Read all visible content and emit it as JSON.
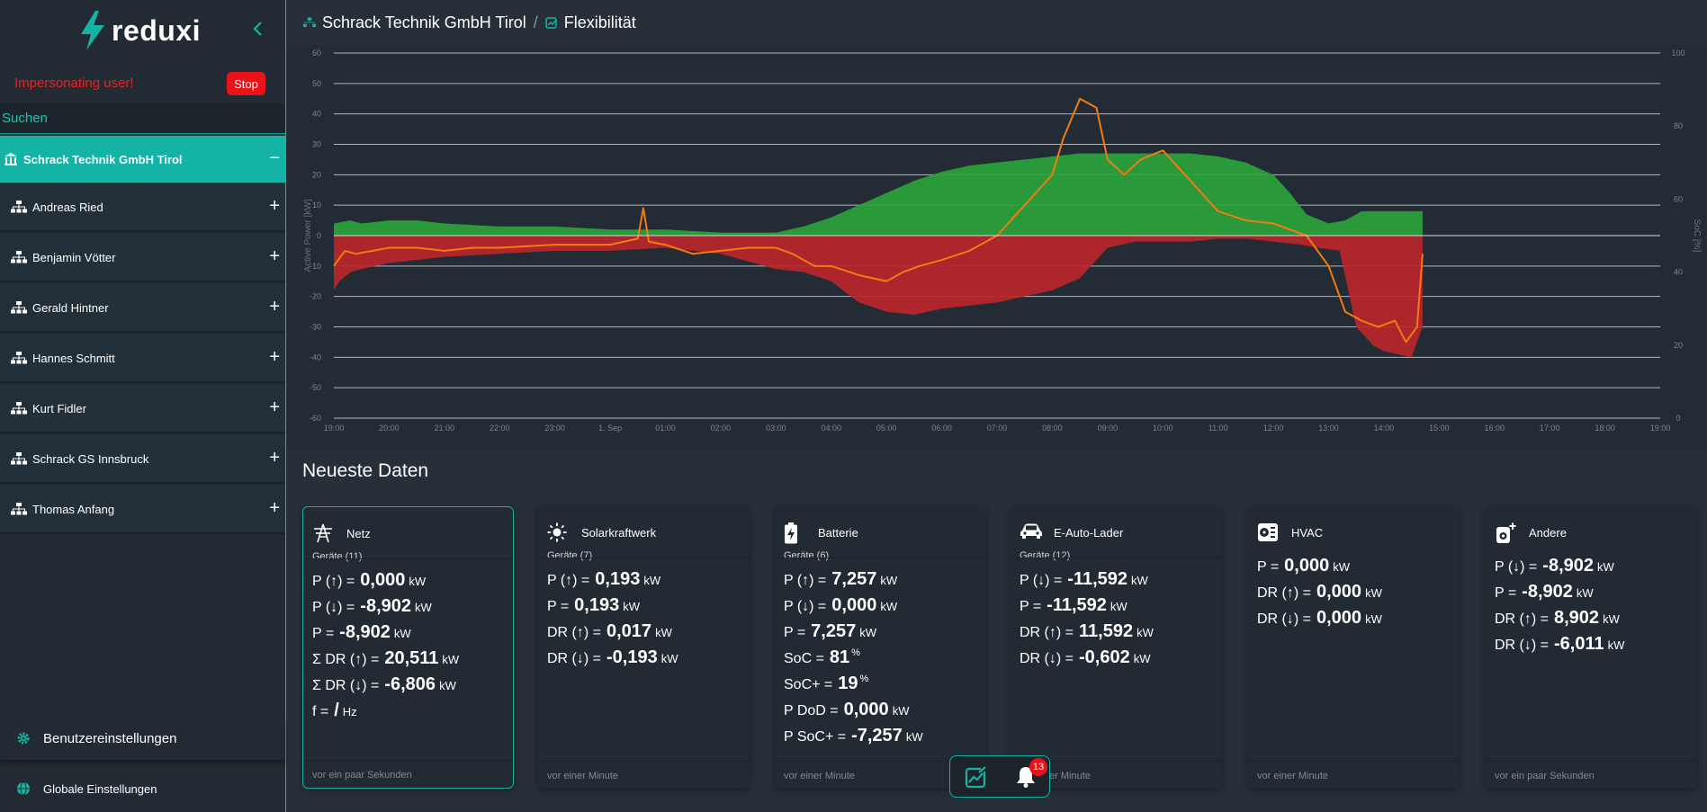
{
  "app": {
    "name": "reduxi",
    "impersonating_text": "Impersonating user!",
    "stop_label": "Stop",
    "search_placeholder": "Suchen"
  },
  "sidebar": {
    "active_org": "Schrack Technik GmbH Tirol",
    "items": [
      {
        "label": "Andreas Ried"
      },
      {
        "label": "Benjamin Vötter"
      },
      {
        "label": "Gerald Hintner"
      },
      {
        "label": "Hannes Schmitt"
      },
      {
        "label": "Kurt Fidler"
      },
      {
        "label": "Schrack GS Innsbruck"
      },
      {
        "label": "Thomas Anfang"
      }
    ],
    "user_settings": "Benutzereinstellungen",
    "global_settings": "Globale Einstellungen"
  },
  "header": {
    "org": "Schrack Technik GmbH Tirol",
    "separator": "/",
    "page": "Flexibilität"
  },
  "chart_data": {
    "type": "area",
    "ylabel": "Active Power [kW]",
    "y2label": "SoC [%]",
    "ylim": [
      -60,
      60
    ],
    "y2lim": [
      0,
      100
    ],
    "yticks": [
      60,
      50,
      40,
      30,
      20,
      10,
      0,
      -10,
      -20,
      -30,
      -40,
      -50,
      -60
    ],
    "y2ticks": [
      100,
      80,
      60,
      40,
      20,
      0
    ],
    "x_categories": [
      "19:00",
      "20:00",
      "21:00",
      "22:00",
      "23:00",
      "1. Sep",
      "01:00",
      "02:00",
      "03:00",
      "04:00",
      "05:00",
      "06:00",
      "07:00",
      "08:00",
      "09:00",
      "10:00",
      "11:00",
      "12:00",
      "13:00",
      "14:00",
      "15:00",
      "16:00",
      "17:00",
      "18:00",
      "19:00"
    ],
    "grid": true,
    "colors": {
      "dr_up": "#2aa33a",
      "dr_down": "#b8262a",
      "power": "#f57a10"
    },
    "series": [
      {
        "key": "dr_up",
        "x": [
          0,
          0.3,
          0.5,
          1,
          1.5,
          2,
          3,
          4,
          5,
          6,
          7,
          8,
          8.5,
          9,
          9.5,
          10,
          10.5,
          11,
          11.5,
          12,
          12.5,
          13,
          13.5,
          14,
          14.5,
          15,
          15.5,
          16,
          16.5,
          17,
          17.3,
          17.6,
          18,
          18.3,
          18.6,
          19,
          19.5,
          19.7
        ],
        "values": [
          4,
          5,
          4,
          5,
          5,
          4,
          3,
          3,
          2,
          2,
          1,
          1,
          3,
          6,
          10,
          14,
          18,
          21,
          23,
          24,
          25,
          26,
          27,
          27,
          27,
          27,
          27,
          26,
          24,
          20,
          14,
          7,
          4,
          5,
          8,
          8,
          8,
          8
        ]
      },
      {
        "key": "dr_down",
        "x": [
          0,
          0.1,
          0.3,
          0.5,
          1,
          1.5,
          2,
          3,
          4,
          5,
          6,
          7,
          8,
          8.5,
          9,
          9.5,
          10,
          10.5,
          11,
          11.5,
          12,
          12.5,
          13,
          13.5,
          14,
          14.5,
          15,
          15.5,
          16,
          16.5,
          17,
          17.5,
          17.8,
          18.2,
          18.5,
          18.8,
          19,
          19.5,
          19.7
        ],
        "values": [
          -18,
          -15,
          -12,
          -11,
          -9,
          -8,
          -7,
          -6,
          -5,
          -5,
          -4,
          -6,
          -11,
          -12,
          -15,
          -22,
          -25,
          -26,
          -24,
          -23,
          -22,
          -20,
          -18,
          -14,
          -4,
          -2,
          -2,
          -2,
          -1,
          -1,
          -2,
          -3,
          -4,
          -5,
          -30,
          -36,
          -38,
          -40,
          -30
        ]
      },
      {
        "key": "power",
        "x": [
          0,
          0.2,
          0.4,
          1,
          1.5,
          2,
          2.5,
          3,
          4,
          5,
          5.5,
          5.6,
          5.7,
          6,
          6.5,
          7,
          7.5,
          8,
          8.3,
          8.7,
          9,
          9.5,
          10,
          10.3,
          10.6,
          11,
          11.5,
          12,
          12.5,
          13,
          13.2,
          13.5,
          13.8,
          14,
          14.3,
          14.6,
          15,
          15.5,
          16,
          16.5,
          17,
          17.3,
          17.6,
          18,
          18.3,
          18.6,
          18.9,
          19.2,
          19.4,
          19.6,
          19.7
        ],
        "values": [
          -10,
          -5,
          -6,
          -4,
          -4,
          -5,
          -4,
          -4,
          -3,
          -3,
          -1,
          9,
          -2,
          -3,
          -6,
          -5,
          -4,
          -4,
          -6,
          -10,
          -10,
          -13,
          -15,
          -12,
          -10,
          -8,
          -5,
          0,
          10,
          20,
          32,
          45,
          42,
          25,
          20,
          25,
          28,
          18,
          8,
          5,
          4,
          2,
          0,
          -10,
          -25,
          -28,
          -30,
          -28,
          -35,
          -30,
          -6
        ]
      }
    ]
  },
  "latest": {
    "title": "Neueste Daten",
    "cards": [
      {
        "title": "Netz",
        "count": "Geräte (11)",
        "foot": "vor ein paar Sekunden",
        "rows": [
          {
            "l": "P (↑) =",
            "v": "0,000",
            "u": "kW"
          },
          {
            "l": "P (↓) =",
            "v": "-8,902",
            "u": "kW"
          },
          {
            "l": "P =",
            "v": "-8,902",
            "u": "kW"
          },
          {
            "l": "Σ DR (↑) =",
            "v": "20,511",
            "u": "kW"
          },
          {
            "l": "Σ DR (↓) =",
            "v": "-6,806",
            "u": "kW"
          },
          {
            "l": "f =",
            "v": "/",
            "u": "Hz"
          }
        ]
      },
      {
        "title": "Solarkraftwerk",
        "count": "Geräte (7)",
        "foot": "vor einer Minute",
        "rows": [
          {
            "l": "P (↑) =",
            "v": "0,193",
            "u": "kW"
          },
          {
            "l": "P =",
            "v": "0,193",
            "u": "kW"
          },
          {
            "l": "DR (↑) =",
            "v": "0,017",
            "u": "kW"
          },
          {
            "l": "DR (↓) =",
            "v": "-0,193",
            "u": "kW"
          }
        ]
      },
      {
        "title": "Batterie",
        "count": "Geräte (6)",
        "foot": "vor einer Minute",
        "rows": [
          {
            "l": "P (↑) =",
            "v": "7,257",
            "u": "kW"
          },
          {
            "l": "P (↓) =",
            "v": "0,000",
            "u": "kW"
          },
          {
            "l": "P =",
            "v": "7,257",
            "u": "kW"
          },
          {
            "l": "SoC =",
            "v": "81",
            "s": "%"
          },
          {
            "l": "SoC+ =",
            "v": "19",
            "s": "%"
          },
          {
            "l": "P DoD =",
            "v": "0,000",
            "u": "kW"
          },
          {
            "l": "P SoC+ =",
            "v": "-7,257",
            "u": "kW"
          }
        ]
      },
      {
        "title": "E-Auto-Lader",
        "count": "Geräte (12)",
        "foot": "vor einer Minute",
        "rows": [
          {
            "l": "P (↓) =",
            "v": "-11,592",
            "u": "kW"
          },
          {
            "l": "P =",
            "v": "-11,592",
            "u": "kW"
          },
          {
            "l": "DR (↑) =",
            "v": "11,592",
            "u": "kW"
          },
          {
            "l": "DR (↓) =",
            "v": "-0,602",
            "u": "kW"
          }
        ]
      },
      {
        "title": "HVAC",
        "count": "",
        "foot": "vor einer Minute",
        "rows": [
          {
            "l": "P =",
            "v": "0,000",
            "u": "kW"
          },
          {
            "l": "DR (↑) =",
            "v": "0,000",
            "u": "kW"
          },
          {
            "l": "DR (↓) =",
            "v": "0,000",
            "u": "kW"
          }
        ]
      },
      {
        "title": "Andere",
        "count": "",
        "foot": "vor ein paar Sekunden",
        "rows": [
          {
            "l": "P (↓) =",
            "v": "-8,902",
            "u": "kW"
          },
          {
            "l": "P =",
            "v": "-8,902",
            "u": "kW"
          },
          {
            "l": "DR (↑) =",
            "v": "8,902",
            "u": "kW"
          },
          {
            "l": "DR (↓) =",
            "v": "-6,011",
            "u": "kW"
          }
        ]
      }
    ]
  },
  "notifications": {
    "count": "13"
  }
}
